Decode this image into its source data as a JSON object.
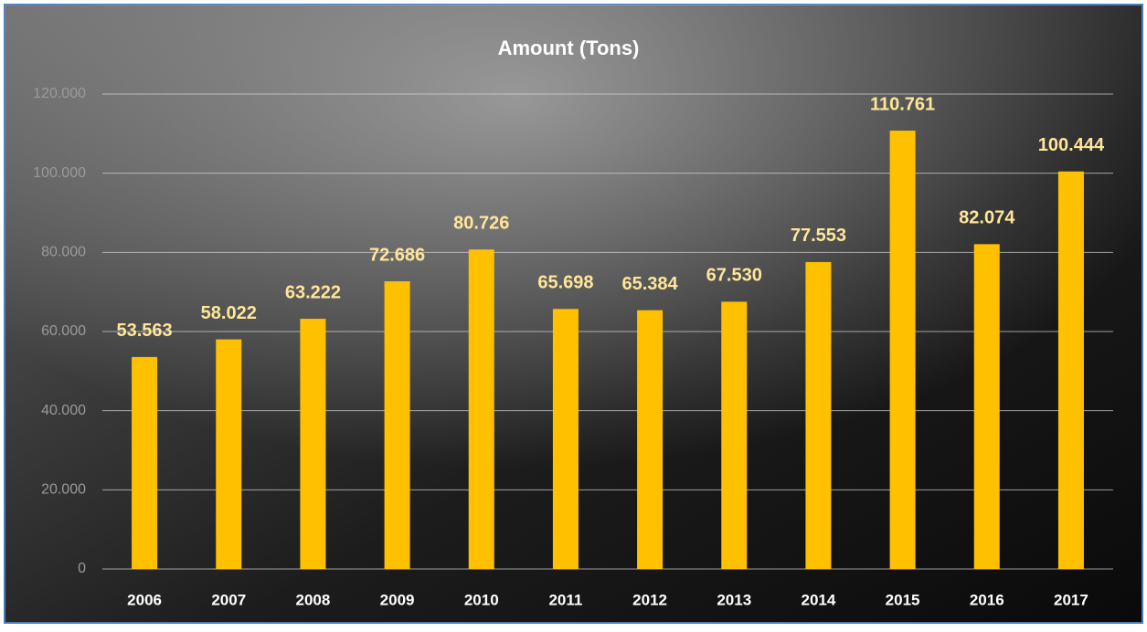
{
  "chart_data": {
    "type": "bar",
    "title": "Amount (Tons)",
    "categories": [
      "2006",
      "2007",
      "2008",
      "2009",
      "2010",
      "2011",
      "2012",
      "2013",
      "2014",
      "2015",
      "2016",
      "2017"
    ],
    "values": [
      53563,
      58022,
      63222,
      72686,
      80726,
      65698,
      65384,
      67530,
      77553,
      110761,
      82074,
      100444
    ],
    "value_labels": [
      "53.563",
      "58.022",
      "63.222",
      "72.686",
      "80.726",
      "65.698",
      "65.384",
      "67.530",
      "77.553",
      "110.761",
      "82.074",
      "100.444"
    ],
    "color": "#ffc000",
    "ylim": [
      0,
      120000
    ],
    "yticks": [
      0,
      {
        "value": 20000,
        "label": "20.000"
      },
      {
        "value": 40000,
        "label": "40.000"
      },
      {
        "value": 60000,
        "label": "60.000"
      },
      {
        "value": 80000,
        "label": "80.000"
      },
      {
        "value": 100000,
        "label": "100.000"
      },
      {
        "value": 120000,
        "label": "120.000"
      }
    ],
    "grid": true
  }
}
